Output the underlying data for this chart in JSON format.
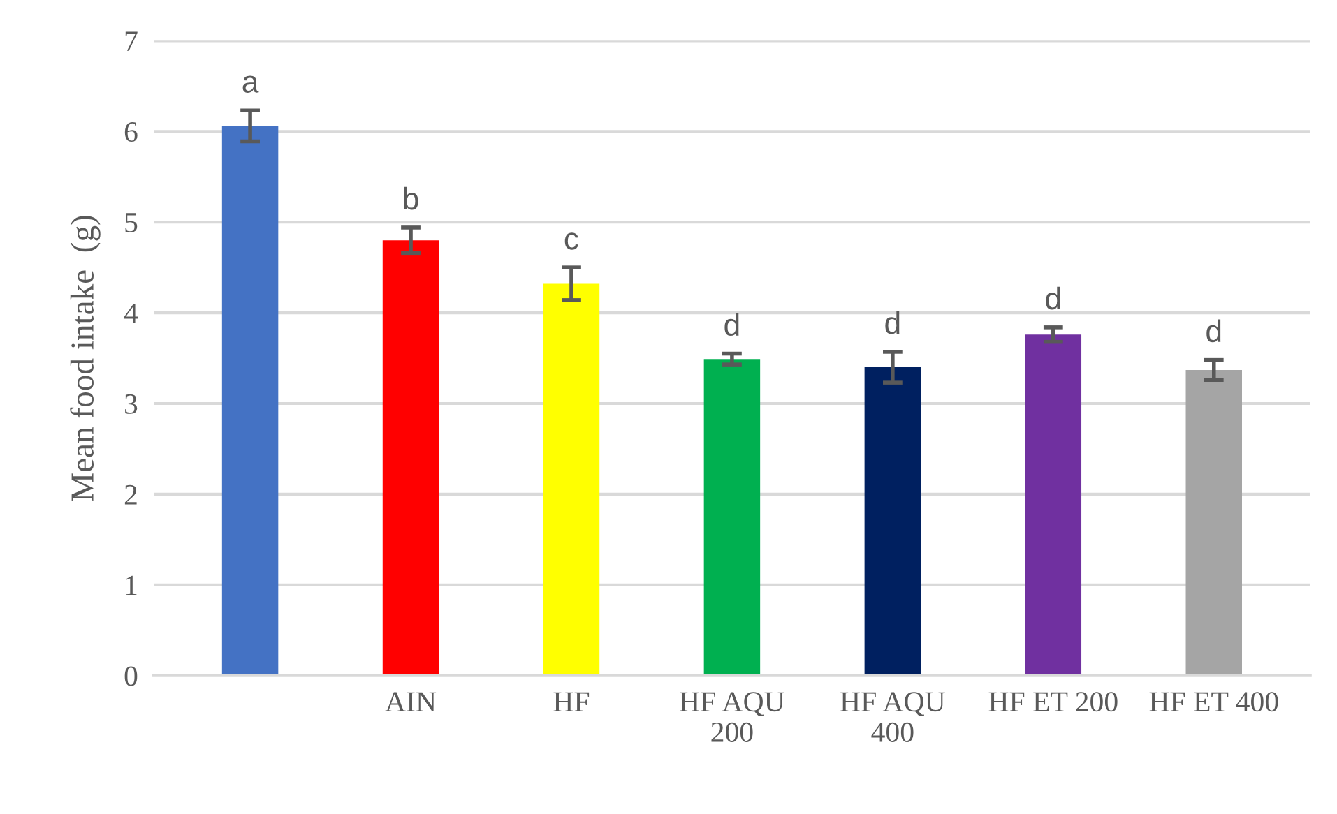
{
  "chart_data": {
    "type": "bar",
    "ylabel": "Mean food intake  (g)",
    "categories": [
      null,
      "AIN",
      "HF",
      "HF AQU 200",
      "HF AQU 400",
      "HF ET 200",
      "HF ET 400"
    ],
    "values": [
      6.06,
      4.8,
      4.32,
      3.49,
      3.4,
      3.76,
      3.37
    ],
    "errors": [
      0.17,
      0.14,
      0.18,
      0.06,
      0.17,
      0.08,
      0.11
    ],
    "colors": [
      "#4472c4",
      "#ff0000",
      "#ffff00",
      "#00b050",
      "#002060",
      "#7030a0",
      "#a5a5a5"
    ],
    "value_labels": [
      "a",
      "b",
      "c",
      "d",
      "d",
      "d",
      "d"
    ],
    "ylim": [
      0,
      7
    ],
    "yticks": [
      0,
      1,
      2,
      3,
      4,
      5,
      6,
      7
    ],
    "grid": "y",
    "legend": false
  }
}
